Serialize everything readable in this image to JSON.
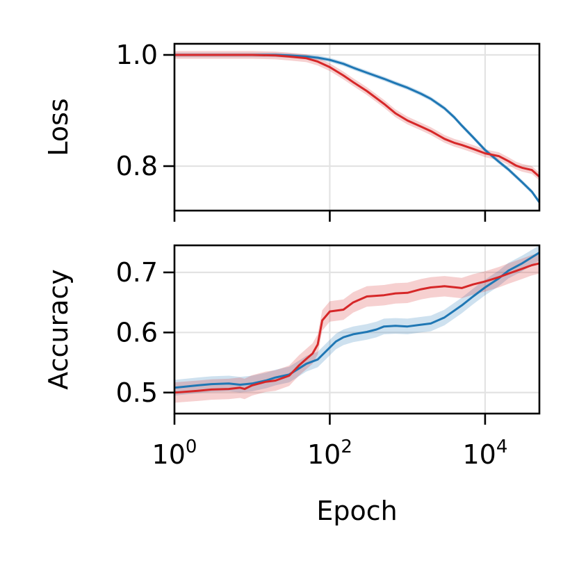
{
  "chart_data": [
    {
      "type": "line",
      "panel": "top",
      "title": "",
      "ylabel": "Loss",
      "xlabel": "",
      "x_scale": "log",
      "xlim": [
        1,
        50000
      ],
      "ylim": [
        0.72,
        1.02
      ],
      "yticks": [
        0.8,
        1.0
      ],
      "ytick_labels": [
        "0.8",
        "1.0"
      ],
      "xticks": [
        1,
        100,
        10000
      ],
      "xtick_labels_shown": false,
      "grid": true,
      "legend": "none",
      "series": [
        {
          "color": "#1f77b4",
          "x": [
            1,
            2,
            5,
            10,
            20,
            30,
            50,
            70,
            100,
            150,
            200,
            300,
            500,
            700,
            1000,
            1500,
            2000,
            3000,
            4000,
            5000,
            7000,
            10000,
            15000,
            20000,
            30000,
            40000,
            50000
          ],
          "y": [
            1.0,
            1.0,
            1.0,
            1.0,
            1.0,
            0.999,
            0.997,
            0.995,
            0.991,
            0.984,
            0.977,
            0.968,
            0.957,
            0.949,
            0.941,
            0.93,
            0.921,
            0.904,
            0.888,
            0.873,
            0.852,
            0.829,
            0.808,
            0.794,
            0.771,
            0.754,
            0.735
          ],
          "band": 0.004
        },
        {
          "color": "#d62728",
          "x": [
            1,
            2,
            5,
            10,
            20,
            30,
            50,
            70,
            100,
            150,
            200,
            300,
            500,
            700,
            1000,
            1500,
            2000,
            3000,
            4000,
            5000,
            7000,
            10000,
            15000,
            20000,
            25000,
            30000,
            40000,
            50000
          ],
          "y": [
            1.0,
            1.0,
            1.0,
            1.0,
            0.999,
            0.997,
            0.994,
            0.988,
            0.978,
            0.963,
            0.951,
            0.935,
            0.912,
            0.895,
            0.882,
            0.871,
            0.863,
            0.849,
            0.842,
            0.838,
            0.831,
            0.823,
            0.818,
            0.809,
            0.801,
            0.797,
            0.793,
            0.781
          ],
          "band": 0.007
        }
      ]
    },
    {
      "type": "line",
      "panel": "bottom",
      "title": "",
      "ylabel": "Accuracy",
      "xlabel": "Epoch",
      "x_scale": "log",
      "xlim": [
        1,
        50000
      ],
      "ylim": [
        0.465,
        0.745
      ],
      "yticks": [
        0.5,
        0.6,
        0.7
      ],
      "ytick_labels": [
        "0.5",
        "0.6",
        "0.7"
      ],
      "xticks": [
        1,
        100,
        10000
      ],
      "xtick_labels": [
        "10^0",
        "10^2",
        "10^4"
      ],
      "xtick_bases": [
        "10",
        "10",
        "10"
      ],
      "xtick_exponents": [
        "0",
        "2",
        "4"
      ],
      "grid": true,
      "legend": "none",
      "series": [
        {
          "color": "#1f77b4",
          "x": [
            1,
            2,
            3,
            5,
            7,
            10,
            15,
            20,
            30,
            40,
            50,
            70,
            100,
            120,
            150,
            200,
            300,
            400,
            500,
            700,
            1000,
            1500,
            2000,
            3000,
            5000,
            7000,
            10000,
            15000,
            20000,
            30000,
            50000
          ],
          "y": [
            0.508,
            0.512,
            0.514,
            0.515,
            0.513,
            0.515,
            0.52,
            0.525,
            0.53,
            0.54,
            0.548,
            0.555,
            0.575,
            0.585,
            0.592,
            0.597,
            0.601,
            0.605,
            0.61,
            0.611,
            0.61,
            0.613,
            0.615,
            0.625,
            0.645,
            0.66,
            0.675,
            0.69,
            0.703,
            0.715,
            0.733
          ],
          "band": 0.013
        },
        {
          "color": "#d62728",
          "x": [
            1,
            2,
            3,
            5,
            7,
            8,
            10,
            15,
            20,
            30,
            40,
            50,
            60,
            70,
            80,
            100,
            150,
            200,
            300,
            500,
            700,
            1000,
            1500,
            2000,
            3000,
            5000,
            7000,
            10000,
            15000,
            20000,
            30000,
            40000,
            50000
          ],
          "y": [
            0.5,
            0.503,
            0.505,
            0.506,
            0.508,
            0.506,
            0.512,
            0.518,
            0.52,
            0.528,
            0.545,
            0.556,
            0.565,
            0.58,
            0.62,
            0.635,
            0.638,
            0.65,
            0.66,
            0.662,
            0.665,
            0.666,
            0.672,
            0.675,
            0.677,
            0.674,
            0.68,
            0.685,
            0.692,
            0.698,
            0.706,
            0.712,
            0.715
          ],
          "band": 0.017
        }
      ]
    }
  ]
}
